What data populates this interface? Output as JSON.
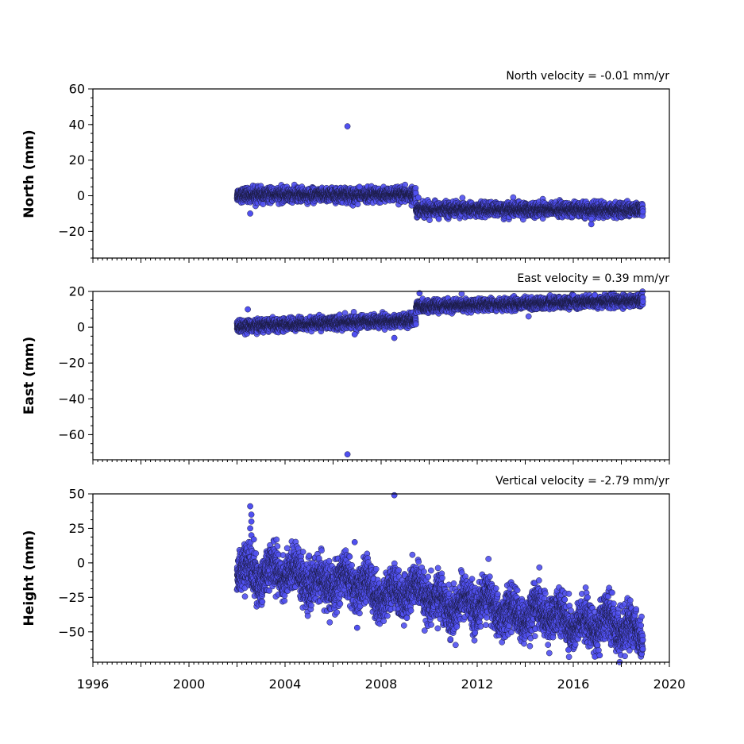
{
  "colors": {
    "marker_fill": "#5050f0",
    "marker_edge": "#1a1a40",
    "axes": "#000000",
    "background": "#ffffff"
  },
  "chart_data": [
    {
      "type": "scatter",
      "title": "North velocity = -0.01 mm/yr",
      "xlabel": "",
      "ylabel": "North (mm)",
      "xlim": [
        1996,
        2020
      ],
      "ylim": [
        -35,
        60
      ],
      "yticks": [
        60,
        40,
        20,
        0,
        -20
      ],
      "ytick_labels": [
        "60",
        "40",
        "20",
        "0",
        "−20"
      ],
      "x_major_ticks": [
        1996,
        1998,
        2000,
        2002,
        2004,
        2006,
        2008,
        2010,
        2012,
        2014,
        2016,
        2018,
        2020
      ],
      "grid": false,
      "series": [
        {
          "segments": [
            {
              "x_start": 2002.0,
              "x_end": 2009.45,
              "y_start": 0.5,
              "y_end": 0.5,
              "spread": 1.8
            },
            {
              "x_start": 2009.45,
              "x_end": 2018.9,
              "y_start": -7.5,
              "y_end": -8.0,
              "spread": 1.8
            }
          ],
          "outliers": [
            {
              "x": 2006.6,
              "y": 39
            },
            {
              "x": 2002.55,
              "y": -10
            },
            {
              "x": 2016.75,
              "y": -16
            },
            {
              "x": 2016.75,
              "y": -13
            },
            {
              "x": 2009.55,
              "y": -1
            },
            {
              "x": 2010.4,
              "y": -13
            },
            {
              "x": 2007.1,
              "y": 5
            }
          ]
        }
      ]
    },
    {
      "type": "scatter",
      "title": "East velocity = 0.39 mm/yr",
      "xlabel": "",
      "ylabel": "East (mm)",
      "xlim": [
        1996,
        2020
      ],
      "ylim": [
        -74,
        20
      ],
      "yticks": [
        20,
        0,
        -20,
        -40,
        -60
      ],
      "ytick_labels": [
        "20",
        "0",
        "−20",
        "−40",
        "−60"
      ],
      "x_major_ticks": [
        1996,
        1998,
        2000,
        2002,
        2004,
        2006,
        2008,
        2010,
        2012,
        2014,
        2016,
        2018,
        2020
      ],
      "grid": false,
      "series": [
        {
          "segments": [
            {
              "x_start": 2002.0,
              "x_end": 2009.45,
              "y_start": 0.5,
              "y_end": 4.0,
              "spread": 1.6
            },
            {
              "x_start": 2009.45,
              "x_end": 2018.9,
              "y_start": 11.5,
              "y_end": 15.0,
              "spread": 1.5
            }
          ],
          "outliers": [
            {
              "x": 2006.6,
              "y": -71
            },
            {
              "x": 2008.55,
              "y": -6
            },
            {
              "x": 2002.45,
              "y": 10
            },
            {
              "x": 2009.6,
              "y": 19
            },
            {
              "x": 2016.9,
              "y": 18
            },
            {
              "x": 2006.9,
              "y": -4
            }
          ]
        }
      ]
    },
    {
      "type": "scatter",
      "title": "Vertical velocity = -2.79 mm/yr",
      "xlabel": "",
      "ylabel": "Height (mm)",
      "xlim": [
        1996,
        2020
      ],
      "ylim": [
        -72,
        50
      ],
      "yticks": [
        50,
        25,
        0,
        -25,
        -50
      ],
      "ytick_labels": [
        "50",
        "25",
        "0",
        "−25",
        "−50"
      ],
      "x_major_ticks": [
        1996,
        1998,
        2000,
        2002,
        2004,
        2006,
        2008,
        2010,
        2012,
        2014,
        2016,
        2018,
        2020
      ],
      "x_tick_labels": [
        "1996",
        "2000",
        "2004",
        "2008",
        "2012",
        "2016",
        "2020"
      ],
      "x_tick_label_values": [
        1996,
        2000,
        2004,
        2008,
        2012,
        2016,
        2020
      ],
      "grid": false,
      "series": [
        {
          "segments": [
            {
              "x_start": 2002.0,
              "x_end": 2018.9,
              "y_start": -3,
              "y_end": -50,
              "spread": 7.5,
              "seasonal": 6
            }
          ],
          "outliers": [
            {
              "x": 2002.55,
              "y": 41
            },
            {
              "x": 2002.6,
              "y": 35
            },
            {
              "x": 2002.6,
              "y": 30
            },
            {
              "x": 2002.55,
              "y": 25
            },
            {
              "x": 2002.6,
              "y": 20
            },
            {
              "x": 2002.7,
              "y": 17
            },
            {
              "x": 2008.55,
              "y": 49
            },
            {
              "x": 2007.0,
              "y": -47
            },
            {
              "x": 2006.9,
              "y": 15
            },
            {
              "x": 2016.9,
              "y": -68
            },
            {
              "x": 2017.1,
              "y": -67
            },
            {
              "x": 2015.8,
              "y": -63
            }
          ]
        }
      ]
    }
  ]
}
